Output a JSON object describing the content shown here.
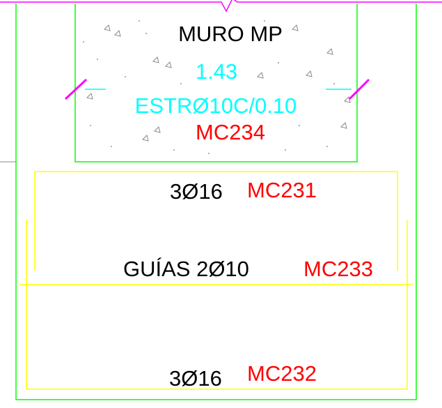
{
  "wall": {
    "name": "MURO MP",
    "dimension": "1.43",
    "stirrups": "ESTRØ10C/0.10",
    "mark": "MC234"
  },
  "top_bars": {
    "label": "3Ø16",
    "mark": "MC231"
  },
  "guide_bars": {
    "label": "GUÍAS 2Ø10",
    "mark": "MC233"
  },
  "bottom_bars": {
    "label": "3Ø16",
    "mark": "MC232"
  }
}
